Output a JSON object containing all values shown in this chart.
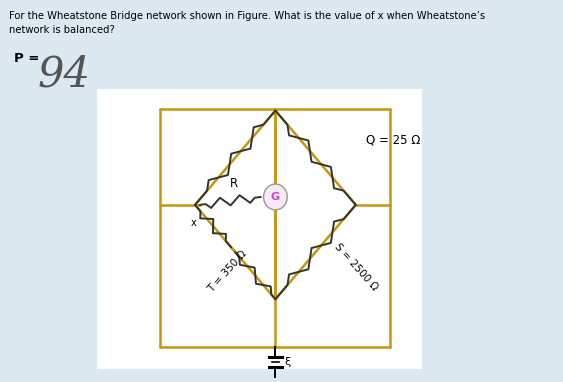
{
  "title_line1": "For the Wheatstone Bridge network shown in Figure. What is the value of x when Wheatstone’s",
  "title_line2": "network is balanced?",
  "p_prefix": "P =",
  "p_num": "94",
  "q_label": "Q = 25 Ω",
  "r_label": "R",
  "t_label": "T = 350 Ω",
  "s_label": "S = 2500 Ω",
  "g_label": "G",
  "x_label": "x",
  "bg_color": "#dce9f0",
  "inner_bg": "#ffffff",
  "line_color": "#c8960a",
  "resistor_color": "#333333",
  "galv_fill": "#f5eaf5",
  "galv_edge": "#999999",
  "text_color": "#000000",
  "fig_width": 5.63,
  "fig_height": 3.82,
  "dpi": 100
}
